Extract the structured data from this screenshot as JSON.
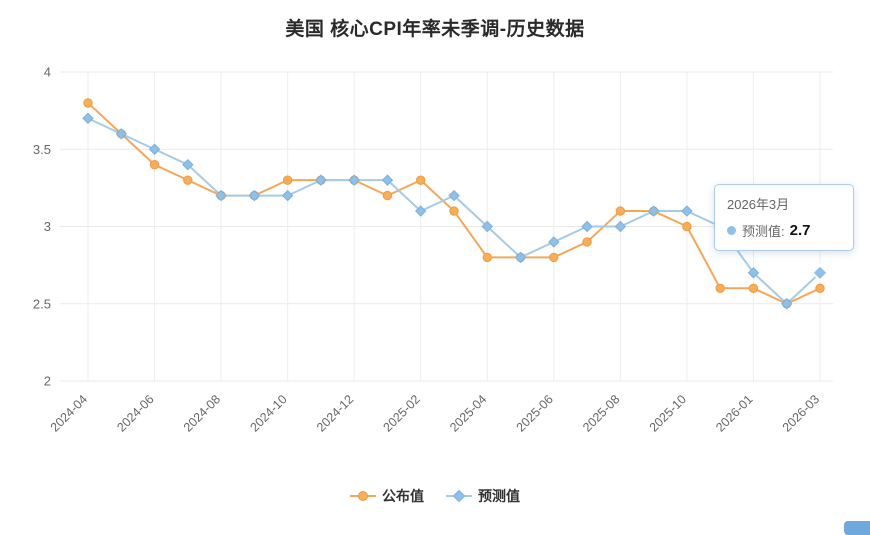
{
  "title": "美国 核心CPI年率未季调-历史数据",
  "colors": {
    "published": "#f5a65a",
    "published_marker_fill": "#f7ae5b",
    "published_marker_stroke": "#f09a3c",
    "forecast": "#a5cbe9",
    "forecast_marker_fill": "#8fc0e8",
    "forecast_marker_stroke": "#7bb0dc",
    "grid": "#e9e9e9",
    "axis_text": "#666666",
    "title_text": "#2a2a2a",
    "tooltip_border": "#abcdeb"
  },
  "tooltip": {
    "date": "2026年3月",
    "series_label": "预测值:",
    "value": "2.7"
  },
  "legend": [
    {
      "label": "公布值",
      "marker": "circle"
    },
    {
      "label": "预测值",
      "marker": "diamond"
    }
  ],
  "y_axis": {
    "ticks": [
      "4",
      "3.5",
      "3",
      "2.5",
      "2"
    ],
    "min": 2,
    "max": 4
  },
  "x_axis": {
    "labels": [
      "2024-04",
      "2024-06",
      "2024-08",
      "2024-10",
      "2024-12",
      "2025-02",
      "2025-04",
      "2025-06",
      "2025-08",
      "2025-10",
      "2026-01",
      "2026-03"
    ]
  },
  "chart_data": {
    "type": "line",
    "title": "美国 核心CPI年率未季调-历史数据",
    "xlabel": "",
    "ylabel": "",
    "ylim": [
      2,
      4
    ],
    "grid": true,
    "legend_position": "bottom",
    "categories": [
      "2024-04",
      "2024-05",
      "2024-06",
      "2024-07",
      "2024-08",
      "2024-09",
      "2024-10",
      "2024-11",
      "2024-12",
      "2025-01",
      "2025-02",
      "2025-03",
      "2025-04",
      "2025-05",
      "2025-06",
      "2025-07",
      "2025-08",
      "2025-09",
      "2025-10",
      "2025-12",
      "2026-01",
      "2026-02",
      "2026-03"
    ],
    "series": [
      {
        "name": "公布值",
        "marker": "circle",
        "color": "#f5a65a",
        "values": [
          3.8,
          3.6,
          3.4,
          3.3,
          3.2,
          3.2,
          3.3,
          3.3,
          3.3,
          3.2,
          3.3,
          3.1,
          2.8,
          2.8,
          2.8,
          2.9,
          3.1,
          3.1,
          3.0,
          2.6,
          2.6,
          2.5,
          2.6
        ]
      },
      {
        "name": "预测值",
        "marker": "diamond",
        "color": "#a5cbe9",
        "values": [
          3.7,
          3.6,
          3.5,
          3.4,
          3.2,
          3.2,
          3.2,
          3.3,
          3.3,
          3.3,
          3.1,
          3.2,
          3.0,
          2.8,
          2.9,
          3.0,
          3.0,
          3.1,
          3.1,
          3.0,
          2.7,
          2.5,
          2.7
        ]
      }
    ],
    "highlight": {
      "series": "预测值",
      "category": "2026-03",
      "value": 2.7
    }
  }
}
